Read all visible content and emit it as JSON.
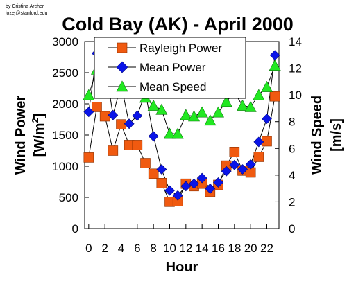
{
  "credit": {
    "line1": "by Cristina Archer",
    "line2": "lozej@stanford.edu"
  },
  "chart_data": {
    "type": "line",
    "title": "Cold Bay (AK) - April 2000",
    "xlabel": "Hour",
    "ylabel_left_main": "Wind Power",
    "ylabel_left_unit_base": "[W/m",
    "ylabel_left_unit_sup": "2",
    "ylabel_left_unit_close": "]",
    "ylabel_right_main": "Wind Speed",
    "ylabel_right_unit": "[m/s]",
    "x_ticks": [
      "0",
      "2",
      "4",
      "6",
      "8",
      "10",
      "12",
      "14",
      "16",
      "18",
      "20",
      "22"
    ],
    "y_left_ticks": [
      "0",
      "500",
      "1000",
      "1500",
      "2000",
      "2500",
      "3000"
    ],
    "y_right_ticks": [
      "0",
      "2",
      "4",
      "6",
      "8",
      "10",
      "12",
      "14"
    ],
    "xlim": [
      -0.5,
      23.5
    ],
    "ylim_left": [
      0,
      3000
    ],
    "ylim_right": [
      0,
      14
    ],
    "x": [
      0,
      1,
      2,
      3,
      4,
      5,
      6,
      7,
      8,
      9,
      10,
      11,
      12,
      13,
      14,
      15,
      16,
      17,
      18,
      19,
      20,
      21,
      22,
      23
    ],
    "series": [
      {
        "name": "Rayleigh Power",
        "axis": "left",
        "marker": "square",
        "color": "#f05a10",
        "values": [
          1140,
          1950,
          1800,
          1250,
          1670,
          1340,
          1340,
          1050,
          880,
          730,
          430,
          440,
          720,
          680,
          720,
          590,
          700,
          1010,
          1230,
          930,
          900,
          1150,
          1400,
          2120
        ]
      },
      {
        "name": "Mean Power",
        "axis": "left",
        "marker": "diamond",
        "color": "#0a14e8",
        "values": [
          1870,
          2810,
          2650,
          1820,
          2310,
          1680,
          1810,
          2190,
          1480,
          950,
          610,
          530,
          680,
          720,
          810,
          640,
          740,
          920,
          1020,
          950,
          1030,
          1390,
          1760,
          2780
        ]
      },
      {
        "name": "Mean Speed",
        "axis": "right",
        "marker": "triangle",
        "color": "#22e822",
        "values": [
          10.0,
          11.9,
          11.6,
          10.2,
          10.8,
          10.5,
          10.4,
          9.8,
          9.2,
          8.9,
          7.1,
          7.1,
          8.5,
          8.4,
          8.7,
          8.1,
          8.7,
          9.5,
          10.2,
          9.2,
          9.1,
          10.0,
          10.6,
          12.2
        ]
      }
    ],
    "legend_placement": "top-center",
    "grid": false
  }
}
